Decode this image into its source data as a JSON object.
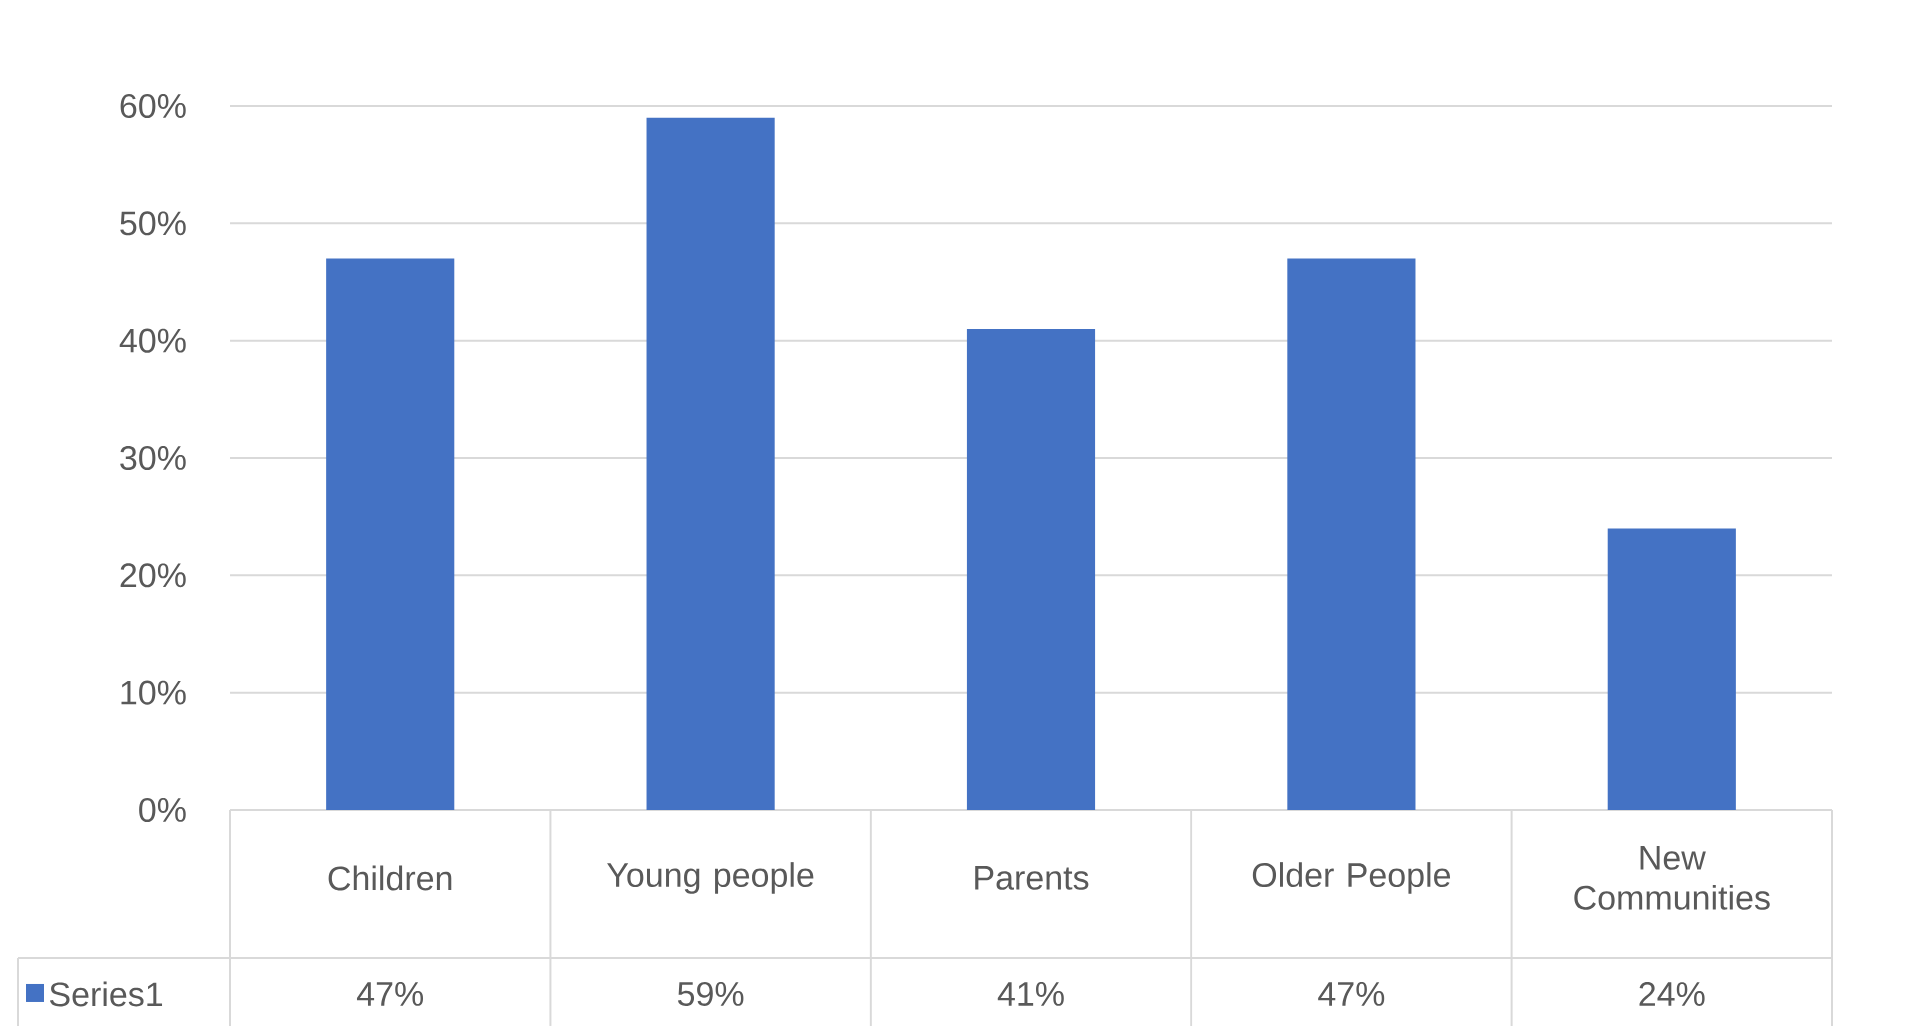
{
  "chart_data": {
    "type": "bar",
    "categories": [
      "Children",
      "Young people",
      "Parents",
      "Older People",
      "New Communities"
    ],
    "series": [
      {
        "name": "Series1",
        "color": "#4472c4",
        "values": [
          47,
          59,
          41,
          47,
          24
        ],
        "value_labels": [
          "47%",
          "59%",
          "41%",
          "47%",
          "24%"
        ]
      }
    ],
    "ylim": [
      0,
      60
    ],
    "yticks": [
      {
        "value": 0,
        "label": "0%"
      },
      {
        "value": 10,
        "label": "10%"
      },
      {
        "value": 20,
        "label": "20%"
      },
      {
        "value": 30,
        "label": "30%"
      },
      {
        "value": 40,
        "label": "40%"
      },
      {
        "value": 50,
        "label": "50%"
      },
      {
        "value": 60,
        "label": "60%"
      }
    ],
    "grid": "y",
    "legend": "bottom"
  }
}
